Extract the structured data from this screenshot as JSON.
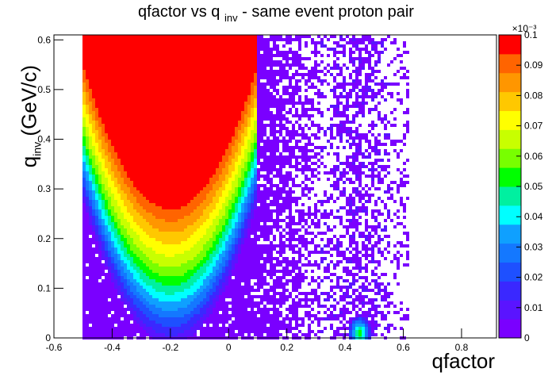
{
  "chart_data": {
    "type": "heatmap",
    "title_main": "qfactor vs q",
    "title_sub": "inv",
    "title_tail": " - same event proton pair",
    "xlabel": "qfactor",
    "ylabel_main": "q",
    "ylabel_sub": "inv",
    "ylabel_tail": " (GeV/c)",
    "xlim": [
      -0.6,
      0.92
    ],
    "ylim": [
      0,
      0.61
    ],
    "x_ticks": [
      "-0.6",
      "-0.4",
      "-0.2",
      "0",
      "0.2",
      "0.4",
      "0.6",
      "0.8"
    ],
    "x_tick_values": [
      -0.6,
      -0.4,
      -0.2,
      0,
      0.2,
      0.4,
      0.6,
      0.8
    ],
    "y_ticks": [
      "0",
      "0.1",
      "0.2",
      "0.3",
      "0.4",
      "0.5",
      "0.6"
    ],
    "y_tick_values": [
      0,
      0.1,
      0.2,
      0.3,
      0.4,
      0.5,
      0.6
    ],
    "colorbar": {
      "range": [
        0,
        0.1
      ],
      "multiplier": "×10⁻³",
      "ticks": [
        "0",
        "0.01",
        "0.02",
        "0.03",
        "0.04",
        "0.05",
        "0.06",
        "0.07",
        "0.08",
        "0.09",
        "0.1"
      ],
      "tick_values": [
        0,
        0.01,
        0.02,
        0.03,
        0.04,
        0.05,
        0.06,
        0.07,
        0.08,
        0.09,
        0.1
      ],
      "colors": [
        "#7a00ff",
        "#5a14ff",
        "#3a28ff",
        "#1e50ff",
        "#1478ff",
        "#0fa0ff",
        "#00ffff",
        "#00f0a0",
        "#00ff00",
        "#78ff00",
        "#c8ff00",
        "#ffff00",
        "#ffc800",
        "#ff9600",
        "#ff6400",
        "#ff0000"
      ]
    },
    "grid": false,
    "features": [
      {
        "description": "main parabolic band",
        "vertex": [
          -0.2,
          0.13
        ],
        "x_extent": [
          -0.5,
          0.1
        ],
        "peak_region_x": [
          -0.35,
          -0.01
        ],
        "peak_region_y": [
          0.28,
          0.61
        ]
      },
      {
        "description": "secondary sparse band",
        "x_extent": [
          0.32,
          0.56
        ]
      },
      {
        "description": "hot spot",
        "center": [
          0.45,
          0.01
        ]
      }
    ]
  }
}
